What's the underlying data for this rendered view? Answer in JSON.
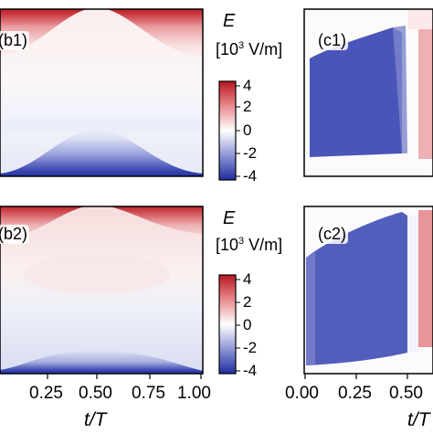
{
  "figure": {
    "panels": [
      {
        "id": "b1",
        "label": "(b1)"
      },
      {
        "id": "b2",
        "label": "(b2)"
      },
      {
        "id": "c1",
        "label": "(c1)"
      },
      {
        "id": "c2",
        "label": "(c2)"
      }
    ],
    "x_tick_labels_left": [
      "0.25",
      "0.50",
      "0.75",
      "1.00"
    ],
    "x_tick_labels_right": [
      "0.00",
      "0.25",
      "0.50"
    ],
    "xlabel_left": "t/T",
    "xlabel_right": "t/T",
    "colorbar_top": {
      "quantity": "E",
      "unit_prefix": "[10",
      "unit_exp": "3",
      "unit_suffix": " V/m]",
      "tick_labels": [
        "4",
        "2",
        "0",
        "-2",
        "-4"
      ]
    },
    "colorbar_bottom": {
      "quantity": "E",
      "unit_prefix": "[10",
      "unit_exp": "3",
      "unit_suffix": " V/m]",
      "tick_labels": [
        "4",
        "2",
        "0",
        "-2",
        "-4"
      ]
    }
  },
  "chart_data": {
    "type": "heatmap",
    "colormap": [
      "#2b3aa8",
      "#ffffff",
      "#c4222a"
    ],
    "vlim": [
      -4,
      4
    ],
    "colorbar_label": "E [10^3 V/m]",
    "colorbar_ticks": [
      4,
      2,
      0,
      -2,
      -4
    ],
    "xlabel": "t/T",
    "xlim": [
      0.0,
      1.0
    ],
    "x_ticks": [
      0.25,
      0.5,
      0.75,
      1.0
    ],
    "panels": [
      "(b1)",
      "(b2)",
      "(c1)",
      "(c2)"
    ]
  }
}
